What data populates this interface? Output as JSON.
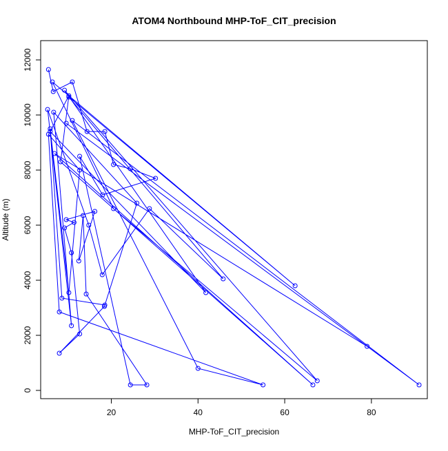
{
  "chart_data": {
    "type": "line",
    "title": "ATOM4 Northbound MHP-ToF_CIT_precision",
    "xlabel": "MHP-ToF_CIT_precision",
    "ylabel": "Altitude (m)",
    "xlim": [
      3.7,
      92.9
    ],
    "ylim": [
      -300,
      12700
    ],
    "xticks": [
      20,
      40,
      60,
      80
    ],
    "yticks": [
      0,
      2000,
      4000,
      6000,
      8000,
      10000,
      12000
    ],
    "grid": false,
    "legend": "none",
    "marker": "open-circle",
    "color": "#0000ff",
    "series": [
      {
        "x": [
          5.5,
          6.6,
          11.0,
          14.4,
          18.5,
          20.5,
          24.4,
          30.2,
          18.0,
          12.7,
          24.4,
          28.2,
          14.2,
          13.5,
          12.5,
          16.2,
          9.6,
          11.4,
          9.2,
          10.8,
          12.7,
          8.0,
          18.4,
          25.9,
          6.7,
          10.8,
          5.3,
          14.8,
          17.9,
          28.8,
          45.8,
          10.2,
          62.4,
          6.4,
          20.5,
          67.5,
          9.2,
          41.8,
          5.9,
          10.2,
          8.3,
          66.5,
          6.9,
          79.0,
          9.6,
          91.0,
          11.0,
          40.0,
          55.0,
          8.0,
          5.5,
          12.7,
          10.2,
          5.9,
          8.6,
          18.5
        ],
        "y": [
          11650,
          10850,
          11200,
          9400,
          9400,
          8200,
          8050,
          7700,
          7100,
          8500,
          200,
          200,
          3500,
          6350,
          4700,
          6500,
          6200,
          6100,
          5900,
          5000,
          2050,
          1350,
          3050,
          6800,
          10100,
          2350,
          10200,
          6000,
          4200,
          6600,
          4050,
          10650,
          3800,
          11200,
          6600,
          350,
          10900,
          3550,
          9400,
          10700,
          8300,
          200,
          8600,
          1600,
          9700,
          200,
          9800,
          800,
          200,
          2850,
          9300,
          8000,
          3550,
          9500,
          3350,
          3100
        ]
      }
    ]
  }
}
